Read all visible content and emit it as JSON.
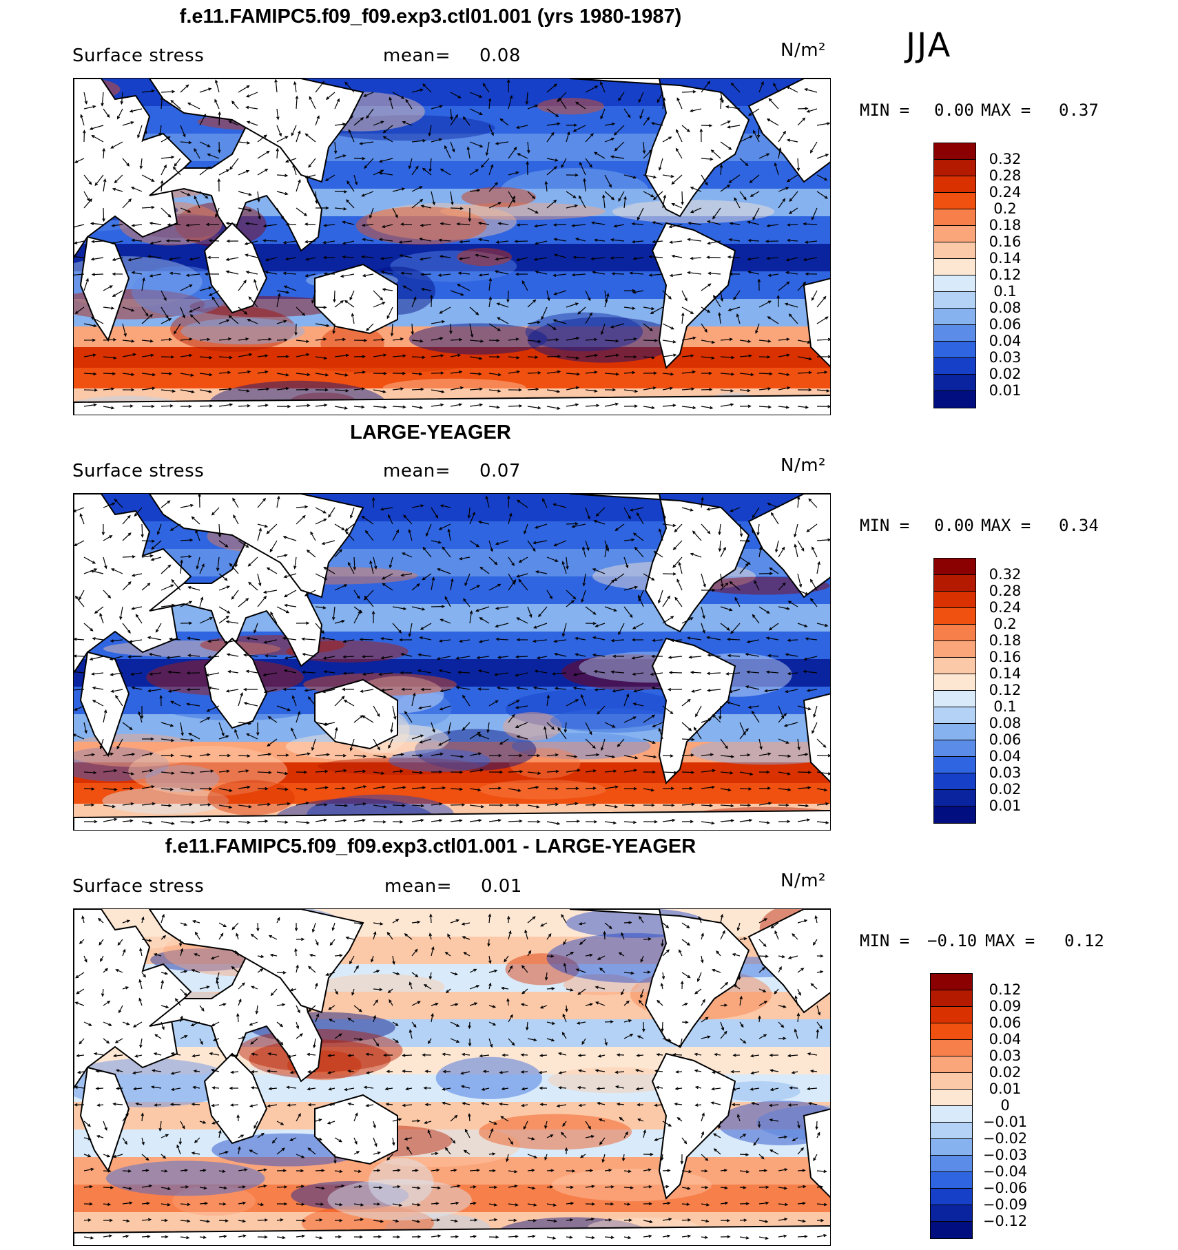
{
  "season": "JJA",
  "panels": [
    {
      "title": "f.e11.FAMIPC5.f09_f09.exp3.ctl01.001 (yrs 1980-1987)",
      "variable": "Surface stress",
      "mean_label": "mean=",
      "mean_value": "0.08",
      "units": "N/m²",
      "min_label": "MIN =",
      "min_value": "0.00",
      "max_label": "MAX =",
      "max_value": "0.37",
      "colorbar": {
        "labels": [
          "0.32",
          "0.28",
          "0.24",
          "0.2",
          "0.18",
          "0.16",
          "0.14",
          "0.12",
          "0.1",
          "0.08",
          "0.06",
          "0.04",
          "0.03",
          "0.02",
          "0.01"
        ],
        "colors": [
          "#8b0000",
          "#b31a00",
          "#d93200",
          "#f05010",
          "#f77f4a",
          "#fba57a",
          "#fcc9a8",
          "#fde6d2",
          "#d9ebfa",
          "#b4d2f5",
          "#86b2ef",
          "#5a8ce8",
          "#2f65e0",
          "#1640c8",
          "#0a24a0",
          "#000e80"
        ]
      }
    },
    {
      "title": "LARGE-YEAGER",
      "variable": "Surface stress",
      "mean_label": "mean=",
      "mean_value": "0.07",
      "units": "N/m²",
      "min_label": "MIN =",
      "min_value": "0.00",
      "max_label": "MAX =",
      "max_value": "0.34",
      "colorbar": {
        "labels": [
          "0.32",
          "0.28",
          "0.24",
          "0.2",
          "0.18",
          "0.16",
          "0.14",
          "0.12",
          "0.1",
          "0.08",
          "0.06",
          "0.04",
          "0.03",
          "0.02",
          "0.01"
        ],
        "colors": [
          "#8b0000",
          "#b31a00",
          "#d93200",
          "#f05010",
          "#f77f4a",
          "#fba57a",
          "#fcc9a8",
          "#fde6d2",
          "#d9ebfa",
          "#b4d2f5",
          "#86b2ef",
          "#5a8ce8",
          "#2f65e0",
          "#1640c8",
          "#0a24a0",
          "#000e80"
        ]
      }
    },
    {
      "title": "f.e11.FAMIPC5.f09_f09.exp3.ctl01.001 - LARGE-YEAGER",
      "variable": "Surface stress",
      "mean_label": "mean=",
      "mean_value": "0.01",
      "units": "N/m²",
      "min_label": "MIN =",
      "min_value": "−0.10",
      "max_label": "MAX =",
      "max_value": "0.12",
      "colorbar": {
        "labels": [
          "0.12",
          "0.09",
          "0.06",
          "0.04",
          "0.03",
          "0.02",
          "0.01",
          "0",
          "−0.01",
          "−0.02",
          "−0.03",
          "−0.04",
          "−0.06",
          "−0.09",
          "−0.12"
        ],
        "colors": [
          "#8b0000",
          "#b31a00",
          "#d93200",
          "#f05010",
          "#f77f4a",
          "#fba57a",
          "#fcc9a8",
          "#fde6d2",
          "#d9ebfa",
          "#b4d2f5",
          "#86b2ef",
          "#5a8ce8",
          "#2f65e0",
          "#1640c8",
          "#0a24a0",
          "#000e80"
        ]
      }
    }
  ]
}
